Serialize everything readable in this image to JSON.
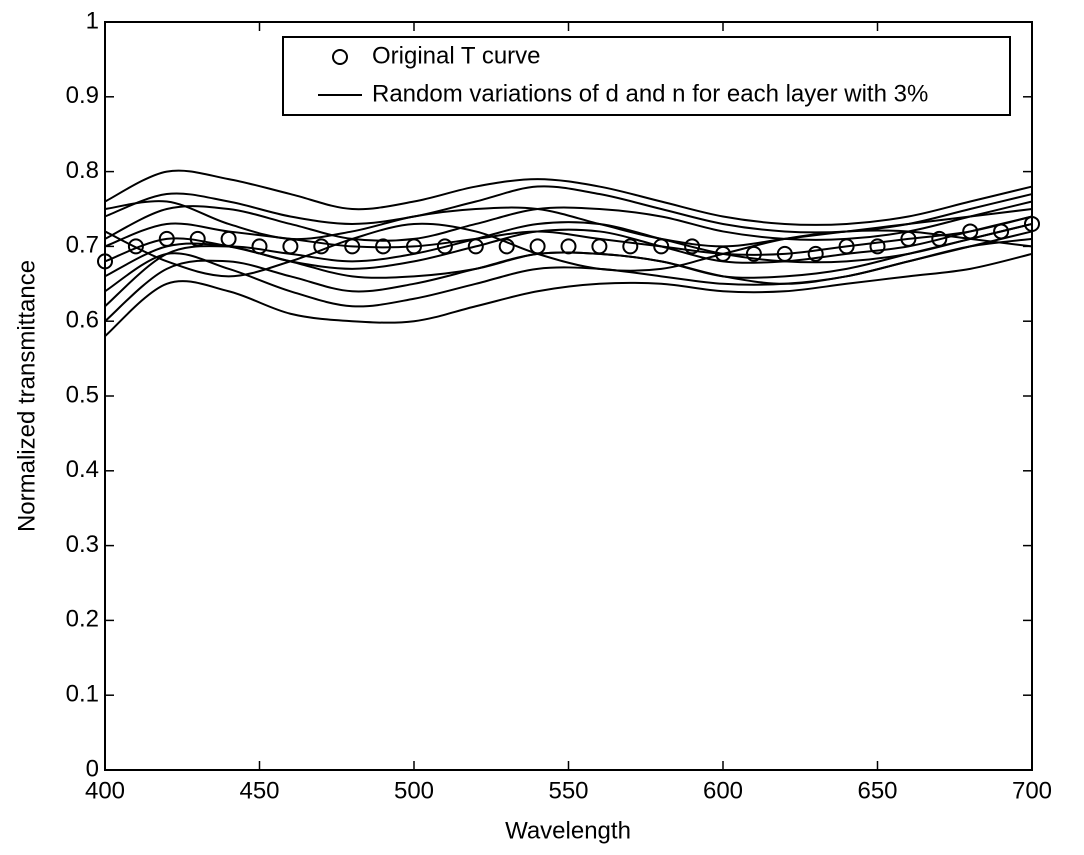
{
  "chart_data": {
    "type": "line",
    "xlabel": "Wavelength",
    "ylabel": "Normalized transmittance",
    "xlim": [
      400,
      700
    ],
    "ylim": [
      0,
      1
    ],
    "xticks": [
      400,
      450,
      500,
      550,
      600,
      650,
      700
    ],
    "yticks": [
      0,
      0.1,
      0.2,
      0.3,
      0.4,
      0.5,
      0.6,
      0.7,
      0.8,
      0.9,
      1
    ],
    "ticks_inside": true,
    "box": true,
    "legend": "top",
    "series": [
      {
        "name": "Original T curve",
        "color": "#000000",
        "marker": "circle",
        "x": [
          400,
          410,
          420,
          430,
          440,
          450,
          460,
          470,
          480,
          490,
          500,
          510,
          520,
          530,
          540,
          550,
          560,
          570,
          580,
          590,
          600,
          610,
          620,
          630,
          640,
          650,
          660,
          670,
          680,
          690,
          700
        ],
        "values": [
          0.68,
          0.7,
          0.71,
          0.71,
          0.71,
          0.7,
          0.7,
          0.7,
          0.7,
          0.7,
          0.7,
          0.7,
          0.7,
          0.7,
          0.7,
          0.7,
          0.7,
          0.7,
          0.7,
          0.7,
          0.69,
          0.69,
          0.69,
          0.69,
          0.7,
          0.7,
          0.71,
          0.71,
          0.72,
          0.72,
          0.73
        ]
      },
      {
        "name": "Random variations of d and n for each layer with 3%",
        "color": "#000000",
        "x": [
          400,
          420,
          440,
          460,
          480,
          500,
          520,
          540,
          560,
          580,
          600,
          620,
          640,
          660,
          680,
          700
        ],
        "values": [
          [
            0.76,
            0.8,
            0.79,
            0.77,
            0.75,
            0.76,
            0.78,
            0.79,
            0.78,
            0.76,
            0.74,
            0.73,
            0.73,
            0.74,
            0.76,
            0.78
          ],
          [
            0.58,
            0.65,
            0.64,
            0.61,
            0.6,
            0.6,
            0.62,
            0.64,
            0.65,
            0.65,
            0.64,
            0.64,
            0.65,
            0.66,
            0.67,
            0.69
          ],
          [
            0.6,
            0.67,
            0.68,
            0.66,
            0.64,
            0.65,
            0.67,
            0.69,
            0.69,
            0.68,
            0.66,
            0.66,
            0.67,
            0.69,
            0.71,
            0.73
          ],
          [
            0.74,
            0.77,
            0.76,
            0.74,
            0.73,
            0.74,
            0.76,
            0.78,
            0.77,
            0.75,
            0.73,
            0.72,
            0.72,
            0.73,
            0.75,
            0.77
          ],
          [
            0.66,
            0.7,
            0.7,
            0.68,
            0.67,
            0.68,
            0.7,
            0.72,
            0.72,
            0.7,
            0.68,
            0.68,
            0.69,
            0.7,
            0.72,
            0.74
          ],
          [
            0.7,
            0.73,
            0.72,
            0.71,
            0.7,
            0.7,
            0.71,
            0.72,
            0.71,
            0.7,
            0.69,
            0.69,
            0.7,
            0.71,
            0.72,
            0.74
          ],
          [
            0.72,
            0.68,
            0.66,
            0.68,
            0.71,
            0.73,
            0.72,
            0.69,
            0.67,
            0.67,
            0.69,
            0.71,
            0.72,
            0.72,
            0.71,
            0.7
          ],
          [
            0.62,
            0.69,
            0.7,
            0.69,
            0.68,
            0.69,
            0.71,
            0.73,
            0.73,
            0.71,
            0.69,
            0.68,
            0.68,
            0.69,
            0.71,
            0.73
          ],
          [
            0.68,
            0.71,
            0.7,
            0.68,
            0.66,
            0.66,
            0.67,
            0.69,
            0.69,
            0.68,
            0.66,
            0.65,
            0.66,
            0.68,
            0.7,
            0.72
          ],
          [
            0.75,
            0.76,
            0.73,
            0.71,
            0.72,
            0.74,
            0.75,
            0.75,
            0.73,
            0.71,
            0.7,
            0.71,
            0.72,
            0.73,
            0.74,
            0.75
          ],
          [
            0.64,
            0.69,
            0.67,
            0.64,
            0.62,
            0.63,
            0.65,
            0.67,
            0.67,
            0.66,
            0.65,
            0.65,
            0.66,
            0.68,
            0.7,
            0.71
          ],
          [
            0.71,
            0.75,
            0.75,
            0.73,
            0.71,
            0.71,
            0.73,
            0.75,
            0.75,
            0.74,
            0.72,
            0.71,
            0.71,
            0.72,
            0.74,
            0.76
          ]
        ]
      }
    ]
  }
}
